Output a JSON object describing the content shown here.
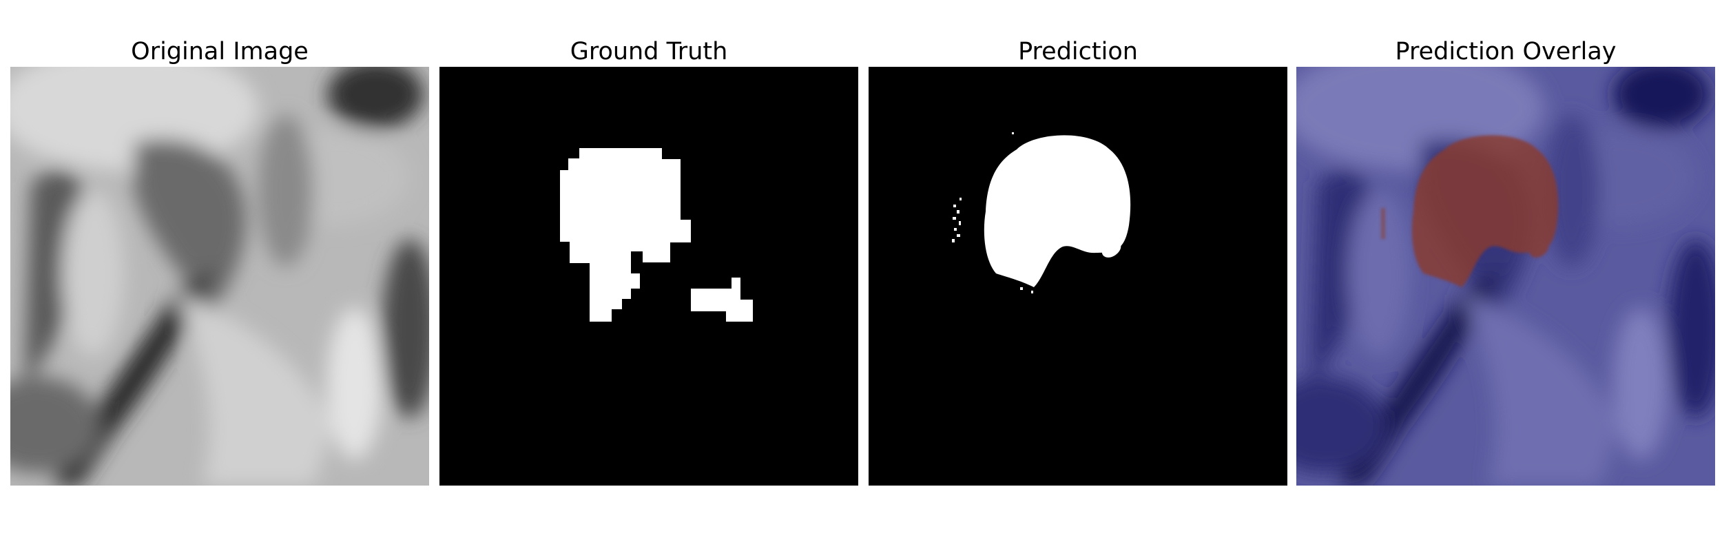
{
  "figure": {
    "panels": [
      {
        "title": "Original Image"
      },
      {
        "title": "Ground Truth"
      },
      {
        "title": "Prediction"
      },
      {
        "title": "Prediction Overlay"
      }
    ]
  },
  "colors": {
    "background": "#ffffff",
    "mask_foreground": "#ffffff",
    "mask_background": "#000000",
    "overlay_base": "#1a1a66",
    "overlay_highlight": "#8a3a2e"
  }
}
